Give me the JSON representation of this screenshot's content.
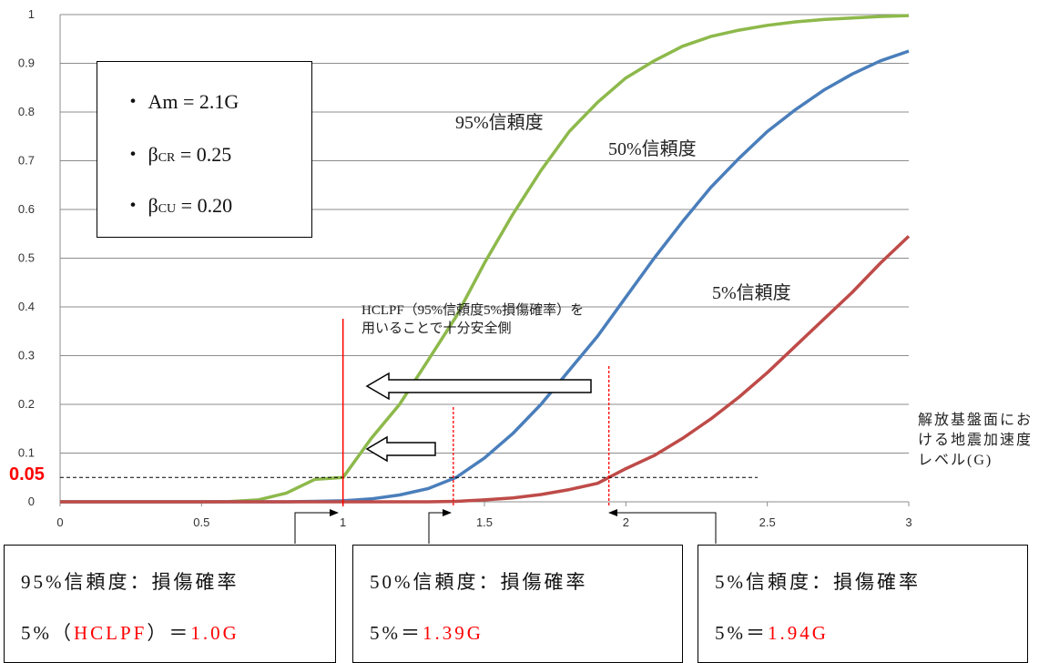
{
  "chart_data": {
    "type": "line",
    "xlim": [
      0,
      3
    ],
    "ylim": [
      0,
      1
    ],
    "x_ticks": [
      "0",
      "0.5",
      "1",
      "1.5",
      "2",
      "2.5",
      "3"
    ],
    "y_ticks": [
      "0",
      "0.1",
      "0.2",
      "0.3",
      "0.4",
      "0.5",
      "0.6",
      "0.7",
      "0.8",
      "0.9",
      "1"
    ],
    "grid": "horizontal",
    "x": [
      0,
      0.1,
      0.2,
      0.3,
      0.4,
      0.5,
      0.6,
      0.7,
      0.8,
      0.9,
      1.0,
      1.1,
      1.2,
      1.3,
      1.4,
      1.5,
      1.6,
      1.7,
      1.8,
      1.9,
      2.0,
      2.1,
      2.2,
      2.3,
      2.4,
      2.5,
      2.6,
      2.7,
      2.8,
      2.9,
      3.0
    ],
    "series": [
      {
        "name": "95%信頼度",
        "color": "#8db94b",
        "values": [
          0,
          0,
          0,
          0,
          0,
          0,
          0.0005,
          0.004,
          0.018,
          0.046,
          0.05,
          0.13,
          0.2,
          0.29,
          0.38,
          0.49,
          0.59,
          0.68,
          0.76,
          0.82,
          0.87,
          0.905,
          0.935,
          0.955,
          0.968,
          0.978,
          0.985,
          0.99,
          0.993,
          0.996,
          0.998
        ]
      },
      {
        "name": "50%信頼度",
        "color": "#4a7ebb",
        "values": [
          0,
          0,
          0,
          0,
          0,
          0,
          0,
          0,
          0,
          0.001,
          0.002,
          0.006,
          0.014,
          0.027,
          0.05,
          0.09,
          0.14,
          0.2,
          0.27,
          0.34,
          0.42,
          0.5,
          0.575,
          0.645,
          0.705,
          0.76,
          0.805,
          0.845,
          0.878,
          0.905,
          0.925
        ]
      },
      {
        "name": "5%信頼度",
        "color": "#be4b48",
        "values": [
          0,
          0,
          0,
          0,
          0,
          0,
          0,
          0,
          0,
          0,
          0,
          0,
          0,
          0,
          0.001,
          0.004,
          0.008,
          0.015,
          0.025,
          0.038,
          0.068,
          0.095,
          0.13,
          0.17,
          0.215,
          0.265,
          0.32,
          0.375,
          0.43,
          0.49,
          0.545
        ]
      }
    ],
    "threshold": 0.05,
    "threshold_label": "0.05",
    "markers": [
      {
        "x": 1.0,
        "label": "1.0G"
      },
      {
        "x": 1.39,
        "label": "1.39G"
      },
      {
        "x": 1.94,
        "label": "1.94G"
      }
    ]
  },
  "params": {
    "am": "・ Am = 2.1G",
    "bcr_prefix": "・ β",
    "bcr_sub": "CR",
    "bcr_value": " = 0.25",
    "bcu_prefix": "・ β",
    "bcu_sub": "CU",
    "bcu_value": " = 0.20"
  },
  "hclpf_note": "HCLPF（95%信頼度5%損傷確率）を用いることで十分安全側",
  "axis_note": "解放基盤面における地震加速度レベル(G)",
  "results": [
    {
      "line1": "95%信頼度：損傷確率",
      "line2_prefix": "5%（",
      "line2_red1": "HCLPF",
      "line2_mid": "）＝",
      "line2_red2": "1.0G"
    },
    {
      "line1": "50%信頼度：損傷確率",
      "line2_prefix": "5%＝",
      "line2_red1": "",
      "line2_mid": "",
      "line2_red2": "1.39G"
    },
    {
      "line1": "5%信頼度：損傷確率",
      "line2_prefix": "5%＝",
      "line2_red1": "",
      "line2_mid": "",
      "line2_red2": "1.94G"
    }
  ]
}
